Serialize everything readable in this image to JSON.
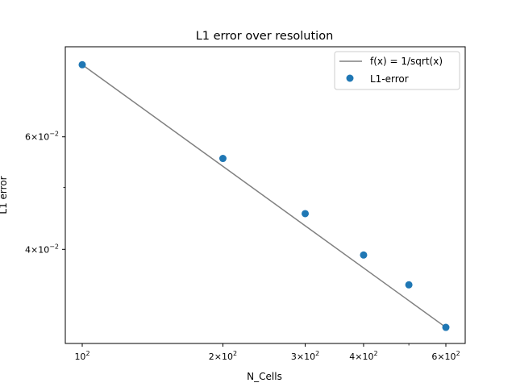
{
  "chart_data": {
    "type": "scatter",
    "title": "L1 error over resolution",
    "xlabel": "N_Cells",
    "ylabel": "L1 error",
    "xscale": "log",
    "yscale": "log",
    "xlim": [
      92,
      660
    ],
    "ylim": [
      0.0285,
      0.083
    ],
    "x_ticks": [
      {
        "value": 100,
        "base": "10",
        "exp": "2"
      },
      {
        "value": 200,
        "base": "2×10",
        "exp": "2"
      },
      {
        "value": 300,
        "base": "3×10",
        "exp": "2"
      },
      {
        "value": 400,
        "base": "4×10",
        "exp": "2"
      },
      {
        "value": 600,
        "base": "6×10",
        "exp": "2"
      }
    ],
    "x_minor_ticks": [
      500
    ],
    "y_ticks": [
      {
        "value": 0.04,
        "base": "4×10",
        "exp": "−2"
      },
      {
        "value": 0.06,
        "base": "6×10",
        "exp": "−2"
      }
    ],
    "y_minor_ticks": [
      0.05
    ],
    "series": [
      {
        "name": "f(x) = 1/sqrt(x)",
        "kind": "line",
        "color": "#808080",
        "x": [
          100,
          600
        ],
        "y": [
          0.0778,
          0.0302
        ]
      },
      {
        "name": "L1-error",
        "kind": "scatter",
        "color": "#1f77b4",
        "x": [
          100,
          200,
          300,
          400,
          500,
          600
        ],
        "y": [
          0.0778,
          0.0555,
          0.0455,
          0.0392,
          0.0352,
          0.0302
        ]
      }
    ],
    "legend": "top-right",
    "grid": false
  }
}
